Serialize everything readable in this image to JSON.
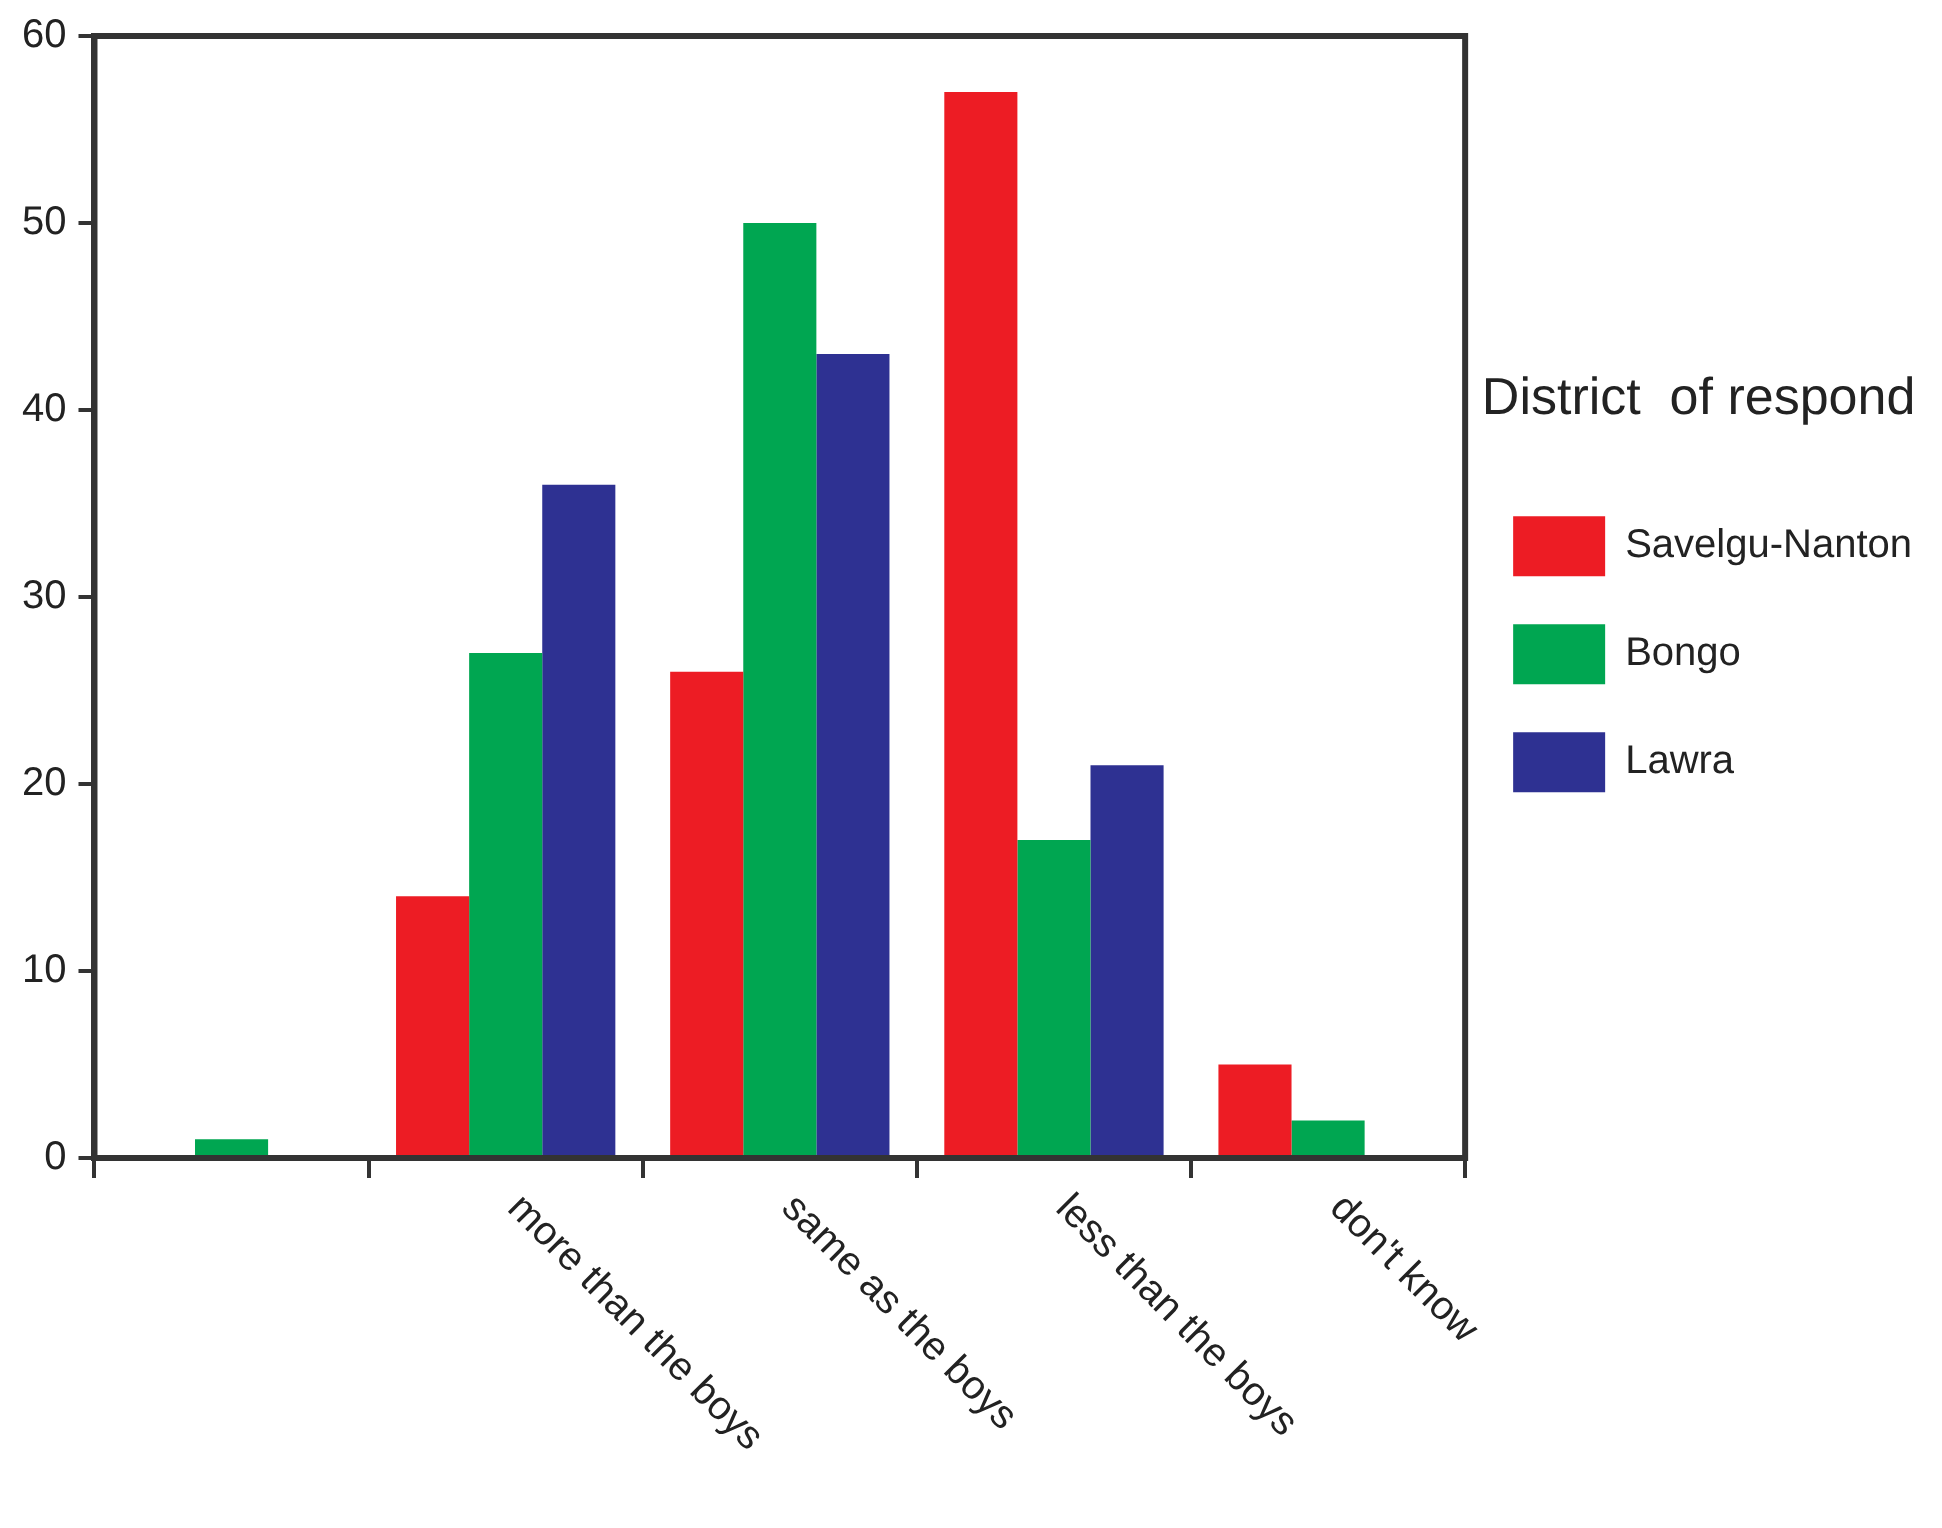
{
  "chart_data": {
    "type": "bar",
    "categories": [
      null,
      "more than the boys",
      "same as the boys",
      "less than the boys",
      "don't know"
    ],
    "series": [
      {
        "name": "Savelgu-Nanton",
        "color": "#ed1c24",
        "values": [
          null,
          14,
          26,
          57,
          5
        ]
      },
      {
        "name": "Bongo",
        "color": "#00a651",
        "values": [
          1,
          27,
          50,
          17,
          2
        ]
      },
      {
        "name": "Lawra",
        "color": "#2e3192",
        "values": [
          null,
          36,
          43,
          21,
          null
        ]
      }
    ],
    "ylim": [
      0,
      60
    ],
    "yticks": [
      0,
      10,
      20,
      30,
      40,
      50,
      60
    ],
    "grid": false,
    "legend": "right",
    "legend_title": "District  of respond"
  }
}
